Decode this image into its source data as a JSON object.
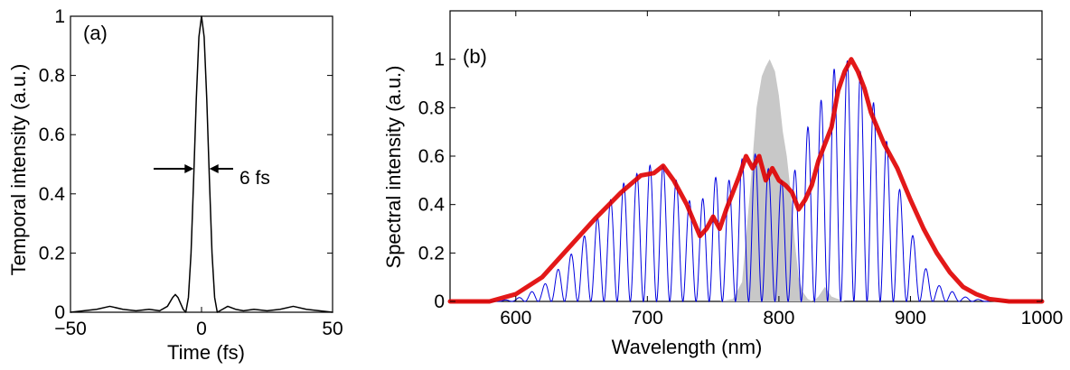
{
  "chart_data": [
    {
      "type": "line",
      "panel_label": "(a)",
      "xlabel": "Time (fs)",
      "ylabel": "Temporal intensity (a.u.)",
      "xlim": [
        -50,
        50
      ],
      "ylim": [
        0,
        1
      ],
      "xticks": [
        "-50",
        "0",
        "50"
      ],
      "yticks": [
        "0",
        "0.2",
        "0.4",
        "0.6",
        "0.8",
        "1"
      ],
      "annotation": "6 fs",
      "series": [
        {
          "color": "#000000",
          "x": [
            -50,
            -45,
            -40,
            -35,
            -30,
            -25,
            -20,
            -16,
            -13,
            -11,
            -10,
            -9,
            -8,
            -7,
            -6,
            -5,
            -4,
            -3,
            -2,
            -1,
            0,
            1,
            2,
            3,
            4,
            5,
            6,
            7,
            8,
            10,
            13,
            16,
            20,
            25,
            30,
            35,
            40,
            45,
            50
          ],
          "y": [
            0.0,
            0.005,
            0.01,
            0.02,
            0.01,
            0.005,
            0.01,
            0.005,
            0.02,
            0.05,
            0.06,
            0.05,
            0.03,
            0.01,
            0.0,
            0.05,
            0.2,
            0.45,
            0.72,
            0.93,
            1.0,
            0.93,
            0.72,
            0.45,
            0.2,
            0.05,
            0.0,
            0.005,
            0.01,
            0.02,
            0.01,
            0.005,
            0.01,
            0.005,
            0.01,
            0.02,
            0.01,
            0.005,
            0.0
          ]
        }
      ]
    },
    {
      "type": "line",
      "panel_label": "(b)",
      "xlabel": "Wavelength (nm)",
      "ylabel": "Spectral intensity (a.u.)",
      "xlim": [
        550,
        1000
      ],
      "ylim": [
        0,
        1.2
      ],
      "xticks": [
        "600",
        "700",
        "800",
        "900",
        "1000"
      ],
      "yticks": [
        "0",
        "0.2",
        "0.4",
        "0.6",
        "0.8",
        "1"
      ],
      "series": [
        {
          "style": "filled-area",
          "color": "#c8c8c8",
          "x": [
            755,
            765,
            772,
            778,
            783,
            787,
            790,
            793,
            797,
            800,
            803,
            806,
            809,
            812,
            815,
            818,
            822,
            826,
            830,
            835,
            840,
            845,
            850
          ],
          "y": [
            0.0,
            0.01,
            0.08,
            0.45,
            0.8,
            0.93,
            0.97,
            1.0,
            0.95,
            0.85,
            0.7,
            0.6,
            0.45,
            0.25,
            0.1,
            0.04,
            0.01,
            0.0,
            0.02,
            0.06,
            0.02,
            0.01,
            0.0
          ]
        },
        {
          "style": "oscillating",
          "color": "#0000e0",
          "x": [
            580,
            600,
            620,
            640,
            660,
            680,
            700,
            710,
            720,
            730,
            740,
            750,
            760,
            770,
            780,
            790,
            800,
            810,
            820,
            830,
            840,
            850,
            860,
            870,
            880,
            890,
            900,
            910,
            920,
            940,
            960
          ],
          "y": [
            0.0,
            0.01,
            0.06,
            0.18,
            0.33,
            0.48,
            0.56,
            0.57,
            0.52,
            0.42,
            0.4,
            0.52,
            0.48,
            0.58,
            0.62,
            0.56,
            0.5,
            0.5,
            0.7,
            0.8,
            0.95,
            1.0,
            0.97,
            0.85,
            0.7,
            0.5,
            0.3,
            0.15,
            0.07,
            0.02,
            0.0
          ],
          "period_nm": 10
        },
        {
          "style": "thick",
          "color": "#e00000",
          "x": [
            550,
            580,
            600,
            620,
            640,
            660,
            680,
            695,
            705,
            712,
            720,
            730,
            740,
            745,
            750,
            755,
            760,
            765,
            770,
            775,
            780,
            785,
            790,
            795,
            800,
            805,
            810,
            815,
            820,
            825,
            830,
            835,
            840,
            845,
            850,
            855,
            860,
            865,
            870,
            880,
            890,
            900,
            910,
            920,
            930,
            940,
            950,
            960,
            975,
            1000
          ],
          "y": [
            0.0,
            0.0,
            0.03,
            0.1,
            0.22,
            0.34,
            0.45,
            0.52,
            0.53,
            0.56,
            0.5,
            0.4,
            0.27,
            0.3,
            0.35,
            0.3,
            0.38,
            0.45,
            0.52,
            0.6,
            0.55,
            0.6,
            0.5,
            0.55,
            0.5,
            0.48,
            0.45,
            0.38,
            0.42,
            0.48,
            0.58,
            0.65,
            0.72,
            0.87,
            0.95,
            1.0,
            0.95,
            0.88,
            0.78,
            0.65,
            0.55,
            0.42,
            0.3,
            0.2,
            0.12,
            0.06,
            0.03,
            0.01,
            0.0,
            0.0
          ]
        }
      ]
    }
  ]
}
